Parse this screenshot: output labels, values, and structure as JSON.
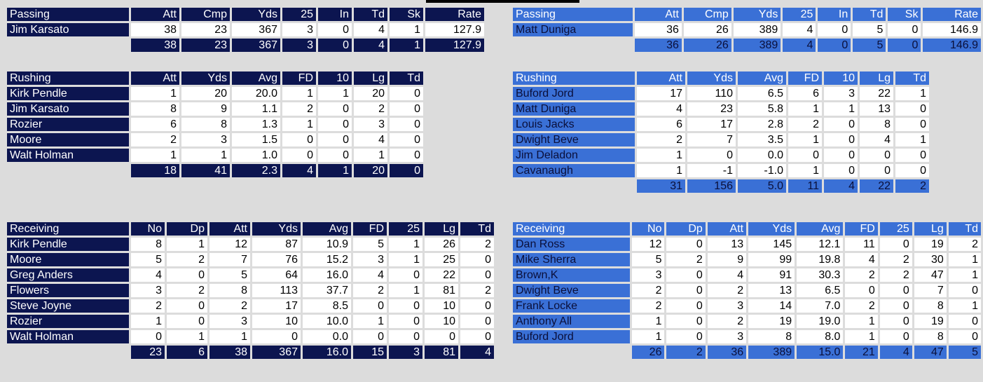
{
  "colors": {
    "away_team": "#0c1550",
    "home_team": "#3a70d6",
    "background": "#dcdcdc"
  },
  "away": {
    "passing": {
      "headers": [
        "Passing",
        "Att",
        "Cmp",
        "Yds",
        "25",
        "In",
        "Td",
        "Sk",
        "Rate"
      ],
      "rows": [
        [
          "Jim Karsato",
          "38",
          "23",
          "367",
          "3",
          "0",
          "4",
          "1",
          "127.9"
        ]
      ],
      "totals": [
        "38",
        "23",
        "367",
        "3",
        "0",
        "4",
        "1",
        "127.9"
      ]
    },
    "rushing": {
      "headers": [
        "Rushing",
        "Att",
        "Yds",
        "Avg",
        "FD",
        "10",
        "Lg",
        "Td"
      ],
      "rows": [
        [
          "Kirk Pendle",
          "1",
          "20",
          "20.0",
          "1",
          "1",
          "20",
          "0"
        ],
        [
          "Jim Karsato",
          "8",
          "9",
          "1.1",
          "2",
          "0",
          "2",
          "0"
        ],
        [
          "Rozier",
          "6",
          "8",
          "1.3",
          "1",
          "0",
          "3",
          "0"
        ],
        [
          "Moore",
          "2",
          "3",
          "1.5",
          "0",
          "0",
          "4",
          "0"
        ],
        [
          "Walt Holman",
          "1",
          "1",
          "1.0",
          "0",
          "0",
          "1",
          "0"
        ]
      ],
      "totals": [
        "18",
        "41",
        "2.3",
        "4",
        "1",
        "20",
        "0"
      ]
    },
    "receiving": {
      "headers": [
        "Receiving",
        "No",
        "Dp",
        "Att",
        "Yds",
        "Avg",
        "FD",
        "25",
        "Lg",
        "Td"
      ],
      "rows": [
        [
          "Kirk Pendle",
          "8",
          "1",
          "12",
          "87",
          "10.9",
          "5",
          "1",
          "26",
          "2"
        ],
        [
          "Moore",
          "5",
          "2",
          "7",
          "76",
          "15.2",
          "3",
          "1",
          "25",
          "0"
        ],
        [
          "Greg Anders",
          "4",
          "0",
          "5",
          "64",
          "16.0",
          "4",
          "0",
          "22",
          "0"
        ],
        [
          "Flowers",
          "3",
          "2",
          "8",
          "113",
          "37.7",
          "2",
          "1",
          "81",
          "2"
        ],
        [
          "Steve Joyne",
          "2",
          "0",
          "2",
          "17",
          "8.5",
          "0",
          "0",
          "10",
          "0"
        ],
        [
          "Rozier",
          "1",
          "0",
          "3",
          "10",
          "10.0",
          "1",
          "0",
          "10",
          "0"
        ],
        [
          "Walt Holman",
          "0",
          "1",
          "1",
          "0",
          "0.0",
          "0",
          "0",
          "0",
          "0"
        ]
      ],
      "totals": [
        "23",
        "6",
        "38",
        "367",
        "16.0",
        "15",
        "3",
        "81",
        "4"
      ]
    }
  },
  "home": {
    "passing": {
      "headers": [
        "Passing",
        "Att",
        "Cmp",
        "Yds",
        "25",
        "In",
        "Td",
        "Sk",
        "Rate"
      ],
      "rows": [
        [
          "Matt Duniga",
          "36",
          "26",
          "389",
          "4",
          "0",
          "5",
          "0",
          "146.9"
        ]
      ],
      "totals": [
        "36",
        "26",
        "389",
        "4",
        "0",
        "5",
        "0",
        "146.9"
      ]
    },
    "rushing": {
      "headers": [
        "Rushing",
        "Att",
        "Yds",
        "Avg",
        "FD",
        "10",
        "Lg",
        "Td"
      ],
      "rows": [
        [
          "Buford Jord",
          "17",
          "110",
          "6.5",
          "6",
          "3",
          "22",
          "1"
        ],
        [
          "Matt Duniga",
          "4",
          "23",
          "5.8",
          "1",
          "1",
          "13",
          "0"
        ],
        [
          "Louis Jacks",
          "6",
          "17",
          "2.8",
          "2",
          "0",
          "8",
          "0"
        ],
        [
          "Dwight Beve",
          "2",
          "7",
          "3.5",
          "1",
          "0",
          "4",
          "1"
        ],
        [
          "Jim Deladon",
          "1",
          "0",
          "0.0",
          "0",
          "0",
          "0",
          "0"
        ],
        [
          "Cavanaugh",
          "1",
          "-1",
          "-1.0",
          "1",
          "0",
          "0",
          "0"
        ]
      ],
      "totals": [
        "31",
        "156",
        "5.0",
        "11",
        "4",
        "22",
        "2"
      ]
    },
    "receiving": {
      "headers": [
        "Receiving",
        "No",
        "Dp",
        "Att",
        "Yds",
        "Avg",
        "FD",
        "25",
        "Lg",
        "Td"
      ],
      "rows": [
        [
          "Dan Ross",
          "12",
          "0",
          "13",
          "145",
          "12.1",
          "11",
          "0",
          "19",
          "2"
        ],
        [
          "Mike Sherra",
          "5",
          "2",
          "9",
          "99",
          "19.8",
          "4",
          "2",
          "30",
          "1"
        ],
        [
          "Brown,K",
          "3",
          "0",
          "4",
          "91",
          "30.3",
          "2",
          "2",
          "47",
          "1"
        ],
        [
          "Dwight Beve",
          "2",
          "0",
          "2",
          "13",
          "6.5",
          "0",
          "0",
          "7",
          "0"
        ],
        [
          "Frank Locke",
          "2",
          "0",
          "3",
          "14",
          "7.0",
          "2",
          "0",
          "8",
          "1"
        ],
        [
          "Anthony All",
          "1",
          "0",
          "2",
          "19",
          "19.0",
          "1",
          "0",
          "19",
          "0"
        ],
        [
          "Buford Jord",
          "1",
          "0",
          "3",
          "8",
          "8.0",
          "1",
          "0",
          "8",
          "0"
        ]
      ],
      "totals": [
        "26",
        "2",
        "36",
        "389",
        "15.0",
        "21",
        "4",
        "47",
        "5"
      ]
    }
  }
}
